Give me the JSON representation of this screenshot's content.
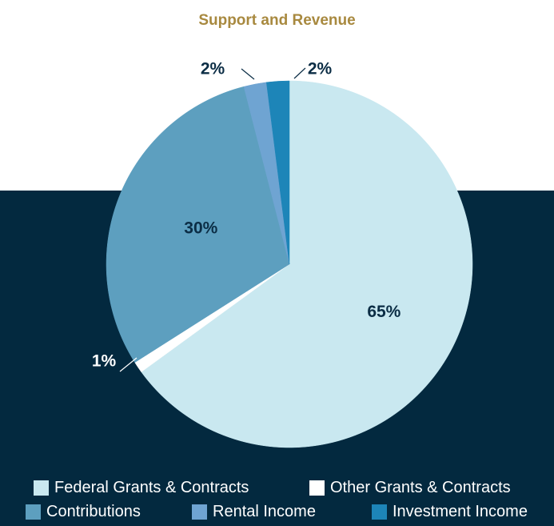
{
  "chart_data": {
    "type": "pie",
    "title": "Support and Revenue",
    "slices": [
      {
        "label": "Federal Grants & Contracts",
        "value": 65,
        "display": "65%",
        "color": "#c9e8f0"
      },
      {
        "label": "Other Grants & Contracts",
        "value": 1,
        "display": "1%",
        "color": "#ffffff"
      },
      {
        "label": "Contributions",
        "value": 30,
        "display": "30%",
        "color": "#5d9fbf"
      },
      {
        "label": "Rental Income",
        "value": 2,
        "display": "2%",
        "color": "#6fa4d2"
      },
      {
        "label": "Investment Income",
        "value": 2,
        "display": "2%",
        "color": "#1d85b8"
      }
    ],
    "legend_position": "bottom"
  },
  "colors": {
    "background_band": "#03293f",
    "title": "#a8893f",
    "label_text": "#0b2d45",
    "legend_text": "#ffffff"
  }
}
